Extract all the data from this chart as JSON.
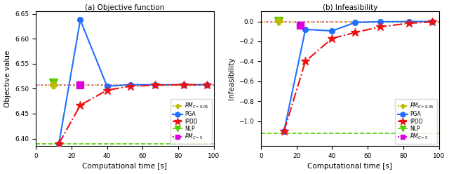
{
  "left_plot": {
    "title": "(a) Objective function",
    "xlabel": "Computational time [s]",
    "ylabel": "Objective value",
    "xlim": [
      0,
      100
    ],
    "ylim": [
      6.385,
      6.655
    ],
    "yticks": [
      6.4,
      6.45,
      6.5,
      6.55,
      6.6,
      6.65
    ],
    "PGA_x": [
      13,
      25,
      40,
      53,
      67,
      83,
      96
    ],
    "PGA_y": [
      6.39,
      6.638,
      6.505,
      6.508,
      6.508,
      6.508,
      6.508
    ],
    "IPDD_x": [
      13,
      25,
      40,
      53,
      67,
      83,
      96
    ],
    "IPDD_y": [
      6.39,
      6.467,
      6.497,
      6.505,
      6.507,
      6.508,
      6.508
    ],
    "NLP_x": [
      10
    ],
    "NLP_y": [
      6.512
    ],
    "PM005_x": [
      10
    ],
    "PM005_y": [
      6.508
    ],
    "PM5_x": [
      25
    ],
    "PM5_y": [
      6.508
    ],
    "NLP_hline_y": 6.39,
    "PM005_hline_y": 6.508,
    "PM5_hline_y": 6.508
  },
  "right_plot": {
    "title": "(b) Infeasibility",
    "xlabel": "Computational time [s]",
    "ylabel": "Infeasibility",
    "xlim": [
      0,
      100
    ],
    "ylim": [
      -1.25,
      0.1
    ],
    "yticks": [
      0.0,
      -0.2,
      -0.4,
      -0.6,
      -0.8,
      -1.0
    ],
    "PGA_x": [
      13,
      25,
      40,
      53,
      67,
      83,
      96
    ],
    "PGA_y": [
      -1.1,
      -0.08,
      -0.095,
      -0.01,
      -0.003,
      -0.001,
      0.0
    ],
    "IPDD_x": [
      13,
      25,
      40,
      53,
      67,
      83,
      96
    ],
    "IPDD_y": [
      -1.1,
      -0.4,
      -0.17,
      -0.11,
      -0.055,
      -0.018,
      -0.005
    ],
    "NLP_x": [
      10
    ],
    "NLP_y": [
      0.003
    ],
    "PM005_x": [
      10
    ],
    "PM005_y": [
      0.003
    ],
    "PM5_x": [
      22
    ],
    "PM5_y": [
      -0.04
    ],
    "NLP_hline_y": -1.12,
    "PM005_hline_y": 0.0,
    "PM5_hline_y": 0.0
  },
  "colors": {
    "PGA": "#1f6fff",
    "IPDD": "#ee1111",
    "NLP": "#55cc00",
    "PM005": "#bbbb00",
    "PM5": "#dd00dd"
  },
  "figsize": [
    6.4,
    2.48
  ],
  "dpi": 100
}
